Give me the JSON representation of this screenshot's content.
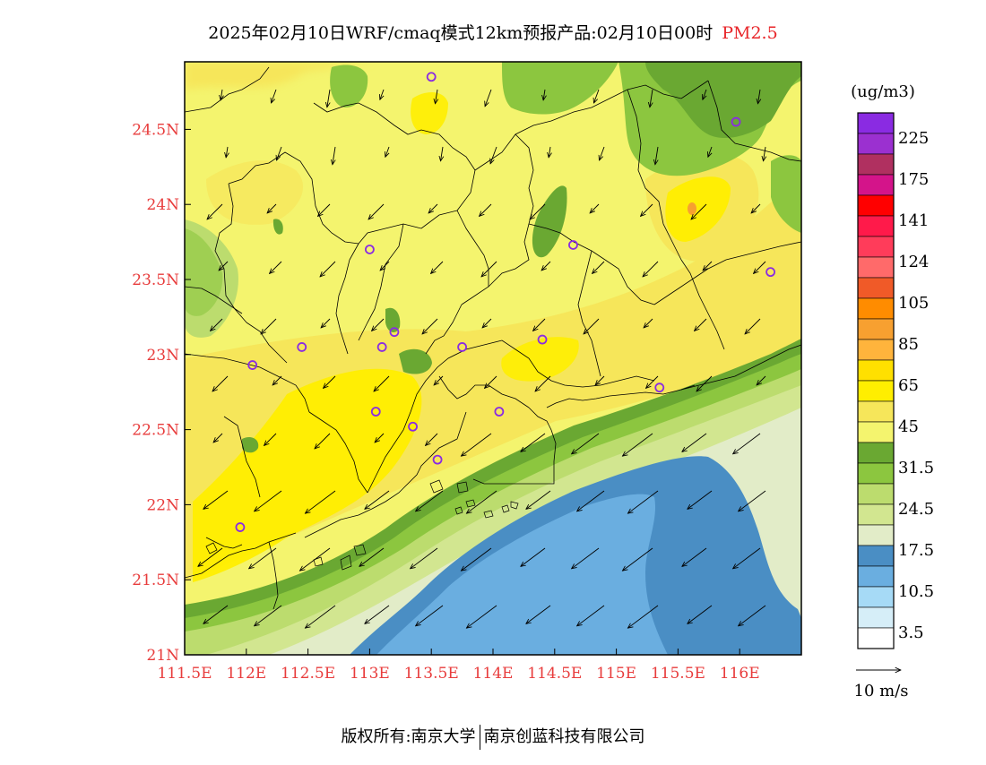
{
  "title": {
    "main": "2025年02月10日WRF/cmaq模式12km预报产品:02月10日00时",
    "pollutant": "PM2.5"
  },
  "footer": {
    "left": "版权所有:南京大学",
    "right": "南京创蓝科技有限公司"
  },
  "legend": {
    "unit": "(ug/m3)",
    "levels": [
      {
        "color": "#8a2be2",
        "label": "225"
      },
      {
        "color": "#9b30d0",
        "label": ""
      },
      {
        "color": "#b03060",
        "label": "175"
      },
      {
        "color": "#d4148a",
        "label": ""
      },
      {
        "color": "#ff0000",
        "label": "141"
      },
      {
        "color": "#ff1a4a",
        "label": ""
      },
      {
        "color": "#ff3c5a",
        "label": "124"
      },
      {
        "color": "#ff6a6a",
        "label": ""
      },
      {
        "color": "#f05a28",
        "label": "105"
      },
      {
        "color": "#ff8c00",
        "label": ""
      },
      {
        "color": "#f7a030",
        "label": "85"
      },
      {
        "color": "#ffb43c",
        "label": ""
      },
      {
        "color": "#ffe000",
        "label": "65"
      },
      {
        "color": "#ffee00",
        "label": ""
      },
      {
        "color": "#f6e65a",
        "label": "45"
      },
      {
        "color": "#f4f46e",
        "label": ""
      },
      {
        "color": "#6aa832",
        "label": "31.5"
      },
      {
        "color": "#8cc63f",
        "label": ""
      },
      {
        "color": "#bcdc6e",
        "label": "24.5"
      },
      {
        "color": "#d2e690",
        "label": ""
      },
      {
        "color": "#e2ecc8",
        "label": "17.5"
      },
      {
        "color": "#4a8ec4",
        "label": ""
      },
      {
        "color": "#6aaee0",
        "label": "10.5"
      },
      {
        "color": "#a6daf6",
        "label": ""
      },
      {
        "color": "#d6eef8",
        "label": "3.5"
      },
      {
        "color": "#ffffff",
        "label": ""
      }
    ],
    "wind_ref_label": "10 m/s"
  },
  "map_data": {
    "lon_ticks": [
      "111.5E",
      "112E",
      "112.5E",
      "113E",
      "113.5E",
      "114E",
      "114.5E",
      "115E",
      "115.5E",
      "116E"
    ],
    "lat_ticks": [
      "21N",
      "21.5N",
      "22N",
      "22.5N",
      "23N",
      "23.5N",
      "24N",
      "24.5N"
    ],
    "lon_range": [
      111.5,
      116.5
    ],
    "lat_range": [
      21.0,
      24.95
    ],
    "stations": [
      [
        113.5,
        24.85
      ],
      [
        115.97,
        24.55
      ],
      [
        113.0,
        23.7
      ],
      [
        114.65,
        23.73
      ],
      [
        116.25,
        23.55
      ],
      [
        112.45,
        23.05
      ],
      [
        112.05,
        22.93
      ],
      [
        113.2,
        23.15
      ],
      [
        113.1,
        23.05
      ],
      [
        113.75,
        23.05
      ],
      [
        114.4,
        23.1
      ],
      [
        115.35,
        22.78
      ],
      [
        113.05,
        22.62
      ],
      [
        113.35,
        22.52
      ],
      [
        114.05,
        22.62
      ],
      [
        113.55,
        22.3
      ],
      [
        111.95,
        21.85
      ]
    ]
  }
}
